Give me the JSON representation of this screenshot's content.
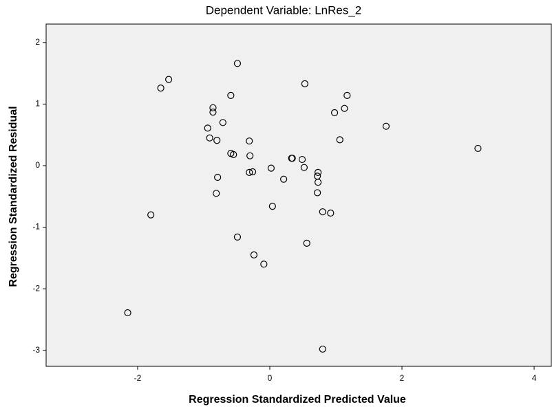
{
  "chart_data": {
    "type": "scatter",
    "title": "Dependent Variable: LnRes_2",
    "x_label": "Regression Standardized Predicted Value",
    "y_label": "Regression Standardized Residual",
    "x": [
      -0.49,
      -1.53,
      -1.65,
      0.53,
      -0.59,
      1.17,
      -0.86,
      -0.86,
      0.98,
      1.13,
      -0.71,
      1.76,
      -0.94,
      -0.91,
      -0.8,
      -0.31,
      1.06,
      3.15,
      -0.59,
      -0.55,
      -0.3,
      0.33,
      0.34,
      0.49,
      0.52,
      0.02,
      -0.31,
      -0.26,
      0.73,
      0.72,
      -0.79,
      0.21,
      0.73,
      -0.81,
      0.72,
      0.04,
      -1.8,
      0.8,
      0.92,
      -0.49,
      0.56,
      -0.24,
      -0.09,
      -2.15,
      0.8
    ],
    "y": [
      1.66,
      1.4,
      1.26,
      1.33,
      1.14,
      1.14,
      0.94,
      0.87,
      0.86,
      0.93,
      0.7,
      0.64,
      0.61,
      0.45,
      0.41,
      0.4,
      0.42,
      0.28,
      0.2,
      0.18,
      0.16,
      0.12,
      0.12,
      0.1,
      -0.03,
      -0.04,
      -0.11,
      -0.1,
      -0.11,
      -0.17,
      -0.19,
      -0.22,
      -0.27,
      -0.45,
      -0.44,
      -0.66,
      -0.8,
      -0.75,
      -0.77,
      -1.16,
      -1.26,
      -1.45,
      -1.6,
      -2.39,
      -2.98
    ],
    "xlim": [
      -3.385,
      4.26
    ],
    "ylim": [
      -3.26,
      2.3
    ],
    "xticks": [
      -2,
      0,
      2,
      4
    ],
    "yticks": [
      -3,
      -2,
      -1,
      0,
      1,
      2
    ],
    "marker_color": "#000000",
    "plot_background": "#f0f0f0"
  }
}
